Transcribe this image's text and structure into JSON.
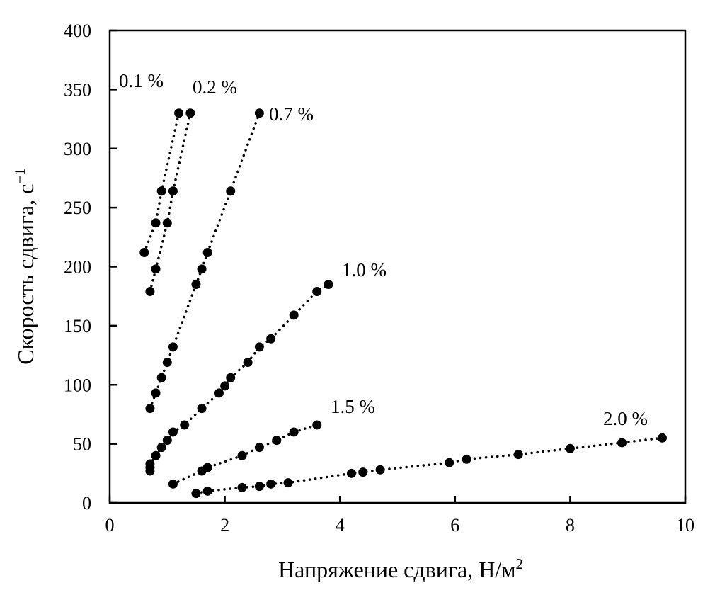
{
  "chart_data": {
    "type": "scatter",
    "title": "",
    "xlabel": "Напряжение сдвига, Н/м",
    "xlabel_sup": "2",
    "ylabel": "Скорость сдвига, с",
    "ylabel_sup": "−1",
    "xlim": [
      0,
      10
    ],
    "ylim": [
      0,
      400
    ],
    "xticks": [
      0,
      2,
      4,
      6,
      8,
      10
    ],
    "yticks": [
      0,
      50,
      100,
      150,
      200,
      250,
      300,
      350,
      400
    ],
    "grid": false,
    "legend": "none",
    "marker_color": "#000000",
    "line_style": "dotted",
    "series": [
      {
        "name": "0.1 %",
        "x": [
          0.6,
          0.8,
          0.9,
          1.2
        ],
        "y": [
          212,
          237,
          264,
          330
        ]
      },
      {
        "name": "0.2 %",
        "x": [
          0.7,
          0.8,
          1.0,
          1.1,
          1.4
        ],
        "y": [
          179,
          198,
          237,
          264,
          330
        ]
      },
      {
        "name": "0.7 %",
        "x": [
          0.7,
          0.8,
          0.9,
          1.0,
          1.1,
          1.5,
          1.6,
          1.7,
          2.1,
          2.6
        ],
        "y": [
          80,
          93,
          106,
          119,
          132,
          185,
          198,
          212,
          264,
          330
        ]
      },
      {
        "name": "1.0 %",
        "x": [
          0.7,
          0.7,
          0.7,
          0.8,
          0.9,
          1.0,
          1.1,
          1.3,
          1.6,
          1.9,
          2.0,
          2.1,
          2.4,
          2.6,
          2.8,
          3.2,
          3.6,
          3.8
        ],
        "y": [
          27,
          30,
          33,
          40,
          47,
          53,
          60,
          66,
          80,
          93,
          99,
          106,
          119,
          132,
          139,
          159,
          179,
          185
        ]
      },
      {
        "name": "1.5 %",
        "x": [
          1.1,
          1.6,
          1.7,
          2.3,
          2.6,
          2.9,
          3.2,
          3.6
        ],
        "y": [
          16,
          27,
          30,
          40,
          47,
          53,
          60,
          66
        ]
      },
      {
        "name": "2.0 %",
        "x": [
          1.5,
          1.7,
          2.3,
          2.6,
          2.8,
          3.1,
          4.2,
          4.4,
          4.7,
          5.9,
          6.2,
          7.1,
          8.0,
          8.9,
          9.6
        ],
        "y": [
          8,
          10,
          13,
          14,
          16,
          17,
          25,
          26,
          28,
          34,
          37,
          41,
          46,
          51,
          55
        ]
      }
    ]
  }
}
